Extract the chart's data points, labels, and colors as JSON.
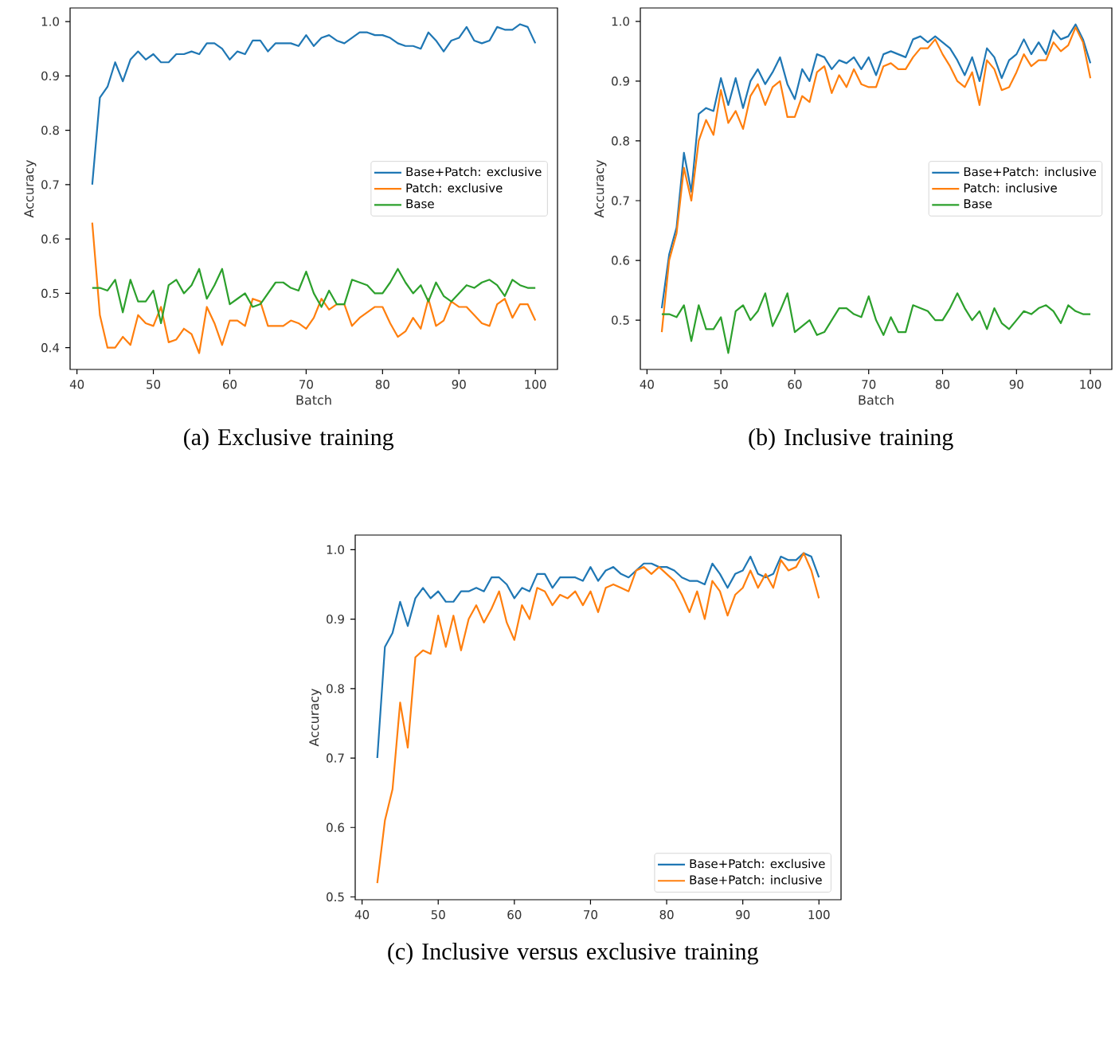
{
  "chart_data": [
    {
      "type": "line",
      "title": "(a) Exclusive training",
      "xlabel": "Batch",
      "ylabel": "Accuracy",
      "x": [
        42,
        43,
        44,
        45,
        46,
        47,
        48,
        49,
        50,
        51,
        52,
        53,
        54,
        55,
        56,
        57,
        58,
        59,
        60,
        61,
        62,
        63,
        64,
        65,
        66,
        67,
        68,
        69,
        70,
        71,
        72,
        73,
        74,
        75,
        76,
        77,
        78,
        79,
        80,
        81,
        82,
        83,
        84,
        85,
        86,
        87,
        88,
        89,
        90,
        91,
        92,
        93,
        94,
        95,
        96,
        97,
        98,
        99,
        100
      ],
      "xlim": [
        39.1,
        102.9
      ],
      "ylim": [
        0.36,
        1.025
      ],
      "xticks": [
        40,
        50,
        60,
        70,
        80,
        90,
        100
      ],
      "yticks": [
        {
          "value": 0.4,
          "label": "0.4"
        },
        {
          "value": 0.5,
          "label": "0.5"
        },
        {
          "value": 0.6,
          "label": "0.6"
        },
        {
          "value": 0.7,
          "label": "0.7"
        },
        {
          "value": 0.8,
          "label": "0.8"
        },
        {
          "value": 0.9,
          "label": "0.9"
        },
        {
          "value": 1.0,
          "label": "1.0"
        }
      ],
      "legend": "right",
      "line_style": "solid",
      "series": [
        {
          "name": "Base+Patch: exclusive",
          "color": "#1f77b4",
          "values": [
            0.7,
            0.86,
            0.88,
            0.925,
            0.89,
            0.93,
            0.945,
            0.93,
            0.94,
            0.925,
            0.925,
            0.94,
            0.94,
            0.945,
            0.94,
            0.96,
            0.96,
            0.95,
            0.93,
            0.945,
            0.94,
            0.965,
            0.965,
            0.945,
            0.96,
            0.96,
            0.96,
            0.955,
            0.975,
            0.955,
            0.97,
            0.975,
            0.965,
            0.96,
            0.97,
            0.98,
            0.98,
            0.975,
            0.975,
            0.97,
            0.96,
            0.955,
            0.955,
            0.95,
            0.98,
            0.965,
            0.945,
            0.965,
            0.97,
            0.99,
            0.965,
            0.96,
            0.965,
            0.99,
            0.985,
            0.985,
            0.995,
            0.99,
            0.96
          ]
        },
        {
          "name": "Patch: exclusive",
          "color": "#ff7f0e",
          "values": [
            0.63,
            0.46,
            0.4,
            0.4,
            0.42,
            0.405,
            0.46,
            0.445,
            0.44,
            0.475,
            0.41,
            0.415,
            0.435,
            0.425,
            0.39,
            0.475,
            0.445,
            0.405,
            0.45,
            0.45,
            0.44,
            0.49,
            0.485,
            0.44,
            0.44,
            0.44,
            0.45,
            0.445,
            0.435,
            0.455,
            0.49,
            0.47,
            0.48,
            0.48,
            0.44,
            0.455,
            0.465,
            0.475,
            0.475,
            0.445,
            0.42,
            0.43,
            0.455,
            0.435,
            0.49,
            0.44,
            0.45,
            0.485,
            0.475,
            0.475,
            0.46,
            0.445,
            0.44,
            0.48,
            0.49,
            0.455,
            0.48,
            0.48,
            0.45
          ]
        },
        {
          "name": "Base",
          "color": "#2ca02c",
          "values": [
            0.51,
            0.51,
            0.505,
            0.525,
            0.465,
            0.525,
            0.485,
            0.485,
            0.505,
            0.445,
            0.515,
            0.525,
            0.5,
            0.515,
            0.545,
            0.49,
            0.515,
            0.545,
            0.48,
            0.49,
            0.5,
            0.475,
            0.48,
            0.5,
            0.52,
            0.52,
            0.51,
            0.505,
            0.54,
            0.5,
            0.475,
            0.505,
            0.48,
            0.48,
            0.525,
            0.52,
            0.515,
            0.5,
            0.5,
            0.52,
            0.545,
            0.52,
            0.5,
            0.515,
            0.485,
            0.52,
            0.495,
            0.485,
            0.5,
            0.515,
            0.51,
            0.52,
            0.525,
            0.515,
            0.495,
            0.525,
            0.515,
            0.51,
            0.51
          ]
        }
      ]
    },
    {
      "type": "line",
      "title": "(b) Inclusive training",
      "xlabel": "Batch",
      "ylabel": "Accuracy",
      "x": [
        42,
        43,
        44,
        45,
        46,
        47,
        48,
        49,
        50,
        51,
        52,
        53,
        54,
        55,
        56,
        57,
        58,
        59,
        60,
        61,
        62,
        63,
        64,
        65,
        66,
        67,
        68,
        69,
        70,
        71,
        72,
        73,
        74,
        75,
        76,
        77,
        78,
        79,
        80,
        81,
        82,
        83,
        84,
        85,
        86,
        87,
        88,
        89,
        90,
        91,
        92,
        93,
        94,
        95,
        96,
        97,
        98,
        99,
        100
      ],
      "xlim": [
        39.1,
        102.9
      ],
      "ylim": [
        0.4175,
        1.0225
      ],
      "xticks": [
        40,
        50,
        60,
        70,
        80,
        90,
        100
      ],
      "yticks": [
        {
          "value": 0.5,
          "label": "0.5"
        },
        {
          "value": 0.6,
          "label": "0.6"
        },
        {
          "value": 0.7,
          "label": "0.7"
        },
        {
          "value": 0.8,
          "label": "0.8"
        },
        {
          "value": 0.9,
          "label": "0.9"
        },
        {
          "value": 1.0,
          "label": "1.0"
        }
      ],
      "legend": "right",
      "line_style": "solid",
      "series": [
        {
          "name": "Base+Patch: inclusive",
          "color": "#1f77b4",
          "values": [
            0.52,
            0.61,
            0.655,
            0.78,
            0.715,
            0.845,
            0.855,
            0.85,
            0.905,
            0.86,
            0.905,
            0.855,
            0.9,
            0.92,
            0.895,
            0.915,
            0.94,
            0.895,
            0.87,
            0.92,
            0.9,
            0.945,
            0.94,
            0.92,
            0.935,
            0.93,
            0.94,
            0.92,
            0.94,
            0.91,
            0.945,
            0.95,
            0.945,
            0.94,
            0.97,
            0.975,
            0.965,
            0.975,
            0.965,
            0.955,
            0.935,
            0.91,
            0.94,
            0.9,
            0.955,
            0.94,
            0.905,
            0.935,
            0.945,
            0.97,
            0.945,
            0.965,
            0.945,
            0.985,
            0.97,
            0.975,
            0.995,
            0.97,
            0.93
          ]
        },
        {
          "name": "Patch: inclusive",
          "color": "#ff7f0e",
          "values": [
            0.48,
            0.6,
            0.645,
            0.755,
            0.7,
            0.8,
            0.835,
            0.81,
            0.885,
            0.83,
            0.85,
            0.82,
            0.875,
            0.895,
            0.86,
            0.89,
            0.9,
            0.84,
            0.84,
            0.875,
            0.865,
            0.915,
            0.925,
            0.88,
            0.91,
            0.89,
            0.92,
            0.895,
            0.89,
            0.89,
            0.925,
            0.93,
            0.92,
            0.92,
            0.94,
            0.955,
            0.955,
            0.97,
            0.945,
            0.925,
            0.9,
            0.89,
            0.915,
            0.86,
            0.935,
            0.92,
            0.885,
            0.89,
            0.915,
            0.945,
            0.925,
            0.935,
            0.935,
            0.965,
            0.95,
            0.96,
            0.99,
            0.965,
            0.905
          ]
        },
        {
          "name": "Base",
          "color": "#2ca02c",
          "values": [
            0.51,
            0.51,
            0.505,
            0.525,
            0.465,
            0.525,
            0.485,
            0.485,
            0.505,
            0.445,
            0.515,
            0.525,
            0.5,
            0.515,
            0.545,
            0.49,
            0.515,
            0.545,
            0.48,
            0.49,
            0.5,
            0.475,
            0.48,
            0.5,
            0.52,
            0.52,
            0.51,
            0.505,
            0.54,
            0.5,
            0.475,
            0.505,
            0.48,
            0.48,
            0.525,
            0.52,
            0.515,
            0.5,
            0.5,
            0.52,
            0.545,
            0.52,
            0.5,
            0.515,
            0.485,
            0.52,
            0.495,
            0.485,
            0.5,
            0.515,
            0.51,
            0.52,
            0.525,
            0.515,
            0.495,
            0.525,
            0.515,
            0.51,
            0.51
          ]
        }
      ]
    },
    {
      "type": "line",
      "title": "(c) Inclusive versus exclusive training",
      "ylabel": "Accuracy",
      "x": [
        42,
        43,
        44,
        45,
        46,
        47,
        48,
        49,
        50,
        51,
        52,
        53,
        54,
        55,
        56,
        57,
        58,
        59,
        60,
        61,
        62,
        63,
        64,
        65,
        66,
        67,
        68,
        69,
        70,
        71,
        72,
        73,
        74,
        75,
        76,
        77,
        78,
        79,
        80,
        81,
        82,
        83,
        84,
        85,
        86,
        87,
        88,
        89,
        90,
        91,
        92,
        93,
        94,
        95,
        96,
        97,
        98,
        99,
        100
      ],
      "xlim": [
        39.1,
        102.9
      ],
      "ylim": [
        0.496,
        1.021
      ],
      "xticks": [
        40,
        50,
        60,
        70,
        80,
        90,
        100
      ],
      "yticks": [
        {
          "value": 0.5,
          "label": "0.5"
        },
        {
          "value": 0.6,
          "label": "0.6"
        },
        {
          "value": 0.7,
          "label": "0.7"
        },
        {
          "value": 0.8,
          "label": "0.8"
        },
        {
          "value": 0.9,
          "label": "0.9"
        },
        {
          "value": 1.0,
          "label": "1.0"
        }
      ],
      "legend": "bottom right",
      "line_style": "solid",
      "series": [
        {
          "name": "Base+Patch: exclusive",
          "color": "#1f77b4",
          "values": [
            0.7,
            0.86,
            0.88,
            0.925,
            0.89,
            0.93,
            0.945,
            0.93,
            0.94,
            0.925,
            0.925,
            0.94,
            0.94,
            0.945,
            0.94,
            0.96,
            0.96,
            0.95,
            0.93,
            0.945,
            0.94,
            0.965,
            0.965,
            0.945,
            0.96,
            0.96,
            0.96,
            0.955,
            0.975,
            0.955,
            0.97,
            0.975,
            0.965,
            0.96,
            0.97,
            0.98,
            0.98,
            0.975,
            0.975,
            0.97,
            0.96,
            0.955,
            0.955,
            0.95,
            0.98,
            0.965,
            0.945,
            0.965,
            0.97,
            0.99,
            0.965,
            0.96,
            0.965,
            0.99,
            0.985,
            0.985,
            0.995,
            0.99,
            0.96
          ]
        },
        {
          "name": "Base+Patch: inclusive",
          "color": "#ff7f0e",
          "values": [
            0.52,
            0.61,
            0.655,
            0.78,
            0.715,
            0.845,
            0.855,
            0.85,
            0.905,
            0.86,
            0.905,
            0.855,
            0.9,
            0.92,
            0.895,
            0.915,
            0.94,
            0.895,
            0.87,
            0.92,
            0.9,
            0.945,
            0.94,
            0.92,
            0.935,
            0.93,
            0.94,
            0.92,
            0.94,
            0.91,
            0.945,
            0.95,
            0.945,
            0.94,
            0.97,
            0.975,
            0.965,
            0.975,
            0.965,
            0.955,
            0.935,
            0.91,
            0.94,
            0.9,
            0.955,
            0.94,
            0.905,
            0.935,
            0.945,
            0.97,
            0.945,
            0.965,
            0.945,
            0.985,
            0.97,
            0.975,
            0.995,
            0.97,
            0.93
          ]
        }
      ]
    }
  ]
}
